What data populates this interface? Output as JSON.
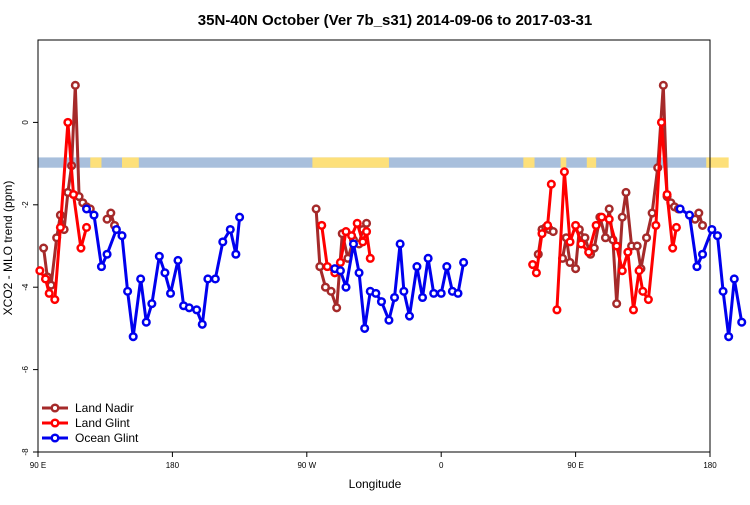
{
  "chart_data": {
    "type": "line",
    "title": "35N-40N October (Ver 7b_s31)   2014-09-06 to 2017-03-31",
    "xlabel": "Longitude",
    "ylabel": "XCO2 - MLO trend (ppm)",
    "x_domain": [
      90,
      450
    ],
    "xlim_label": [
      "90 E",
      "180"
    ],
    "ylim": [
      -8,
      2
    ],
    "x_ticks": [
      {
        "value": 90,
        "label": "90 E"
      },
      {
        "value": 180,
        "label": "180"
      },
      {
        "value": 270,
        "label": "90 W"
      },
      {
        "value": 360,
        "label": "0"
      },
      {
        "value": 450,
        "label": "90 E"
      },
      {
        "value": 540,
        "label": "180"
      }
    ],
    "y_ticks": [
      {
        "value": 0,
        "label": "0"
      },
      {
        "value": -2,
        "label": "-2"
      },
      {
        "value": -4,
        "label": "-4"
      },
      {
        "value": -6,
        "label": "-6"
      },
      {
        "value": -8,
        "label": "-8"
      }
    ],
    "land_sea_band": {
      "y_range": [
        -1.1,
        -0.85
      ],
      "ocean_color": "#a8bfdc",
      "land_color": "#fde07a",
      "land_segments_lon": [
        [
          118,
          124
        ],
        [
          135,
          144
        ],
        [
          237,
          278
        ],
        [
          350,
          356
        ],
        [
          370,
          373
        ],
        [
          384,
          389
        ],
        [
          448,
          460
        ],
        [
          474,
          483
        ]
      ]
    },
    "legend": {
      "placement": "bottom-left",
      "entries": [
        {
          "name": "Land Nadir",
          "color": "#a52a2a"
        },
        {
          "name": "Land Glint",
          "color": "#ff0000"
        },
        {
          "name": "Ocean Glint",
          "color": "#0000ee"
        }
      ]
    },
    "series": [
      {
        "name": "Land Nadir",
        "color": "#a52a2a",
        "segments": [
          [
            [
              93,
              -3.05
            ],
            [
              95,
              -3.75
            ],
            [
              97,
              -3.95
            ],
            [
              100,
              -2.8
            ],
            [
              102,
              -2.25
            ],
            [
              104,
              -2.6
            ],
            [
              106,
              -1.7
            ],
            [
              108,
              -1.05
            ],
            [
              110,
              0.9
            ],
            [
              112,
              -1.8
            ],
            [
              114,
              -1.95
            ],
            [
              116,
              -2.05
            ],
            [
              118,
              -2.1
            ]
          ],
          [
            [
              127,
              -2.35
            ],
            [
              129,
              -2.2
            ],
            [
              131,
              -2.5
            ]
          ],
          [
            [
              239,
              -2.1
            ],
            [
              241,
              -3.5
            ],
            [
              244,
              -4.0
            ],
            [
              247,
              -4.1
            ],
            [
              250,
              -4.5
            ],
            [
              253,
              -2.7
            ],
            [
              256,
              -3.3
            ],
            [
              259,
              -2.85
            ],
            [
              262,
              -2.95
            ],
            [
              264,
              -2.6
            ],
            [
              266,
              -2.45
            ]
          ],
          [
            [
              358,
              -3.2
            ],
            [
              360,
              -2.6
            ],
            [
              362,
              -2.55
            ],
            [
              364,
              -2.6
            ],
            [
              366,
              -2.65
            ]
          ],
          [
            [
              371,
              -3.3
            ],
            [
              373,
              -2.8
            ],
            [
              375,
              -3.4
            ],
            [
              378,
              -3.55
            ],
            [
              380,
              -2.6
            ],
            [
              383,
              -2.8
            ],
            [
              386,
              -3.2
            ],
            [
              388,
              -3.05
            ],
            [
              391,
              -2.3
            ],
            [
              394,
              -2.8
            ],
            [
              396,
              -2.1
            ],
            [
              398,
              -2.85
            ],
            [
              400,
              -4.4
            ],
            [
              403,
              -2.3
            ],
            [
              405,
              -1.7
            ],
            [
              408,
              -3.0
            ],
            [
              411,
              -3.0
            ],
            [
              413,
              -3.55
            ],
            [
              416,
              -2.8
            ],
            [
              419,
              -2.2
            ],
            [
              422,
              -1.1
            ],
            [
              425,
              0.9
            ],
            [
              427,
              -1.8
            ],
            [
              429,
              -1.95
            ],
            [
              431,
              -2.05
            ],
            [
              433,
              -2.1
            ]
          ],
          [
            [
              442,
              -2.35
            ],
            [
              444,
              -2.2
            ],
            [
              446,
              -2.5
            ]
          ]
        ]
      },
      {
        "name": "Land Glint",
        "color": "#ff0000",
        "segments": [
          [
            [
              91,
              -3.6
            ],
            [
              94,
              -3.8
            ],
            [
              96,
              -4.15
            ],
            [
              99,
              -4.3
            ],
            [
              102,
              -2.55
            ],
            [
              106,
              0.0
            ],
            [
              109,
              -1.75
            ],
            [
              113,
              -3.05
            ],
            [
              116,
              -2.55
            ]
          ],
          [
            [
              242,
              -2.5
            ],
            [
              245,
              -3.5
            ],
            [
              249,
              -3.65
            ],
            [
              252,
              -3.4
            ],
            [
              255,
              -2.65
            ],
            [
              258,
              -2.75
            ],
            [
              261,
              -2.45
            ],
            [
              264,
              -2.9
            ],
            [
              266,
              -2.65
            ],
            [
              268,
              -3.3
            ]
          ],
          [
            [
              355,
              -3.45
            ],
            [
              357,
              -3.65
            ],
            [
              360,
              -2.7
            ],
            [
              363,
              -2.5
            ],
            [
              365,
              -1.5
            ]
          ],
          [
            [
              368,
              -4.55
            ],
            [
              372,
              -1.2
            ],
            [
              375,
              -2.9
            ],
            [
              378,
              -2.5
            ],
            [
              381,
              -2.95
            ],
            [
              385,
              -3.15
            ],
            [
              389,
              -2.5
            ],
            [
              392,
              -2.3
            ],
            [
              396,
              -2.35
            ],
            [
              400,
              -3.0
            ],
            [
              403,
              -3.6
            ],
            [
              406,
              -3.15
            ],
            [
              409,
              -4.55
            ],
            [
              412,
              -3.6
            ],
            [
              414,
              -4.1
            ],
            [
              417,
              -4.3
            ],
            [
              421,
              -2.5
            ],
            [
              424,
              0.0
            ],
            [
              427,
              -1.75
            ],
            [
              430,
              -3.05
            ],
            [
              432,
              -2.55
            ]
          ]
        ]
      },
      {
        "name": "Ocean Glint",
        "color": "#0000ee",
        "segments": [
          [
            [
              116,
              -2.1
            ],
            [
              120,
              -2.25
            ],
            [
              124,
              -3.5
            ],
            [
              127,
              -3.2
            ],
            [
              132,
              -2.6
            ],
            [
              135,
              -2.75
            ],
            [
              138,
              -4.1
            ],
            [
              141,
              -5.2
            ],
            [
              145,
              -3.8
            ],
            [
              148,
              -4.85
            ],
            [
              151,
              -4.4
            ],
            [
              155,
              -3.25
            ],
            [
              158,
              -3.65
            ],
            [
              161,
              -4.15
            ],
            [
              165,
              -3.35
            ],
            [
              168,
              -4.45
            ],
            [
              171,
              -4.5
            ],
            [
              175,
              -4.55
            ],
            [
              178,
              -4.9
            ],
            [
              181,
              -3.8
            ],
            [
              185,
              -3.8
            ],
            [
              189,
              -2.9
            ],
            [
              193,
              -2.6
            ],
            [
              196,
              -3.2
            ],
            [
              198,
              -2.3
            ]
          ],
          [
            [
              249,
              -3.55
            ],
            [
              252,
              -3.6
            ],
            [
              255,
              -4.0
            ],
            [
              259,
              -2.95
            ],
            [
              262,
              -3.65
            ],
            [
              265,
              -5.0
            ],
            [
              268,
              -4.1
            ],
            [
              271,
              -4.15
            ],
            [
              274,
              -4.35
            ],
            [
              278,
              -4.8
            ],
            [
              281,
              -4.25
            ],
            [
              284,
              -2.95
            ],
            [
              286,
              -4.1
            ],
            [
              289,
              -4.7
            ],
            [
              293,
              -3.5
            ],
            [
              296,
              -4.25
            ],
            [
              299,
              -3.3
            ],
            [
              302,
              -4.15
            ],
            [
              306,
              -4.15
            ],
            [
              309,
              -3.5
            ],
            [
              312,
              -4.1
            ],
            [
              315,
              -4.15
            ],
            [
              318,
              -3.4
            ]
          ],
          [
            [
              434,
              -2.1
            ],
            [
              439,
              -2.25
            ],
            [
              443,
              -3.5
            ],
            [
              446,
              -3.2
            ],
            [
              451,
              -2.6
            ],
            [
              454,
              -2.75
            ],
            [
              457,
              -4.1
            ],
            [
              460,
              -5.2
            ],
            [
              463,
              -3.8
            ],
            [
              467,
              -4.85
            ]
          ]
        ]
      }
    ]
  }
}
